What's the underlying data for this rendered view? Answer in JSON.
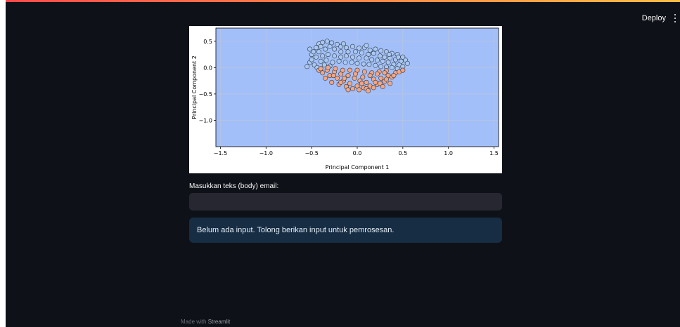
{
  "header": {
    "deploy_label": "Deploy",
    "menu_icon": "more-vertical-icon"
  },
  "chart_data": {
    "type": "scatter",
    "title": "",
    "xlabel": "Principal Component 1",
    "ylabel": "Principal Component 2",
    "xlim": [
      -1.55,
      1.55
    ],
    "ylim": [
      -1.5,
      0.75
    ],
    "xticks": [
      -1.5,
      -1.0,
      -0.5,
      0.0,
      0.5,
      1.0,
      1.5
    ],
    "xtick_labels": [
      "−1.5",
      "−1.0",
      "−0.5",
      "0.0",
      "0.5",
      "1.0",
      "1.5"
    ],
    "yticks": [
      0.5,
      0.0,
      -0.5,
      -1.0
    ],
    "ytick_labels": [
      "0.5",
      "0.0",
      "−0.5",
      "−1.0"
    ],
    "grid": true,
    "background_color": "#a3bff9",
    "series": [
      {
        "color": "#a9c8f1",
        "points": [
          [
            -0.45,
            0.38
          ],
          [
            -0.42,
            0.45
          ],
          [
            -0.38,
            0.48
          ],
          [
            -0.33,
            0.5
          ],
          [
            -0.28,
            0.47
          ],
          [
            -0.22,
            0.44
          ],
          [
            -0.18,
            0.4
          ],
          [
            -0.12,
            0.38
          ],
          [
            -0.05,
            0.4
          ],
          [
            0.02,
            0.37
          ],
          [
            0.08,
            0.38
          ],
          [
            0.14,
            0.33
          ],
          [
            0.2,
            0.35
          ],
          [
            0.26,
            0.32
          ],
          [
            0.32,
            0.3
          ],
          [
            0.38,
            0.27
          ],
          [
            0.44,
            0.25
          ],
          [
            0.5,
            0.2
          ],
          [
            0.53,
            0.14
          ],
          [
            0.55,
            0.08
          ],
          [
            -0.5,
            0.25
          ],
          [
            -0.48,
            0.3
          ],
          [
            -0.42,
            0.3
          ],
          [
            -0.35,
            0.35
          ],
          [
            -0.3,
            0.4
          ],
          [
            -0.25,
            0.35
          ],
          [
            -0.18,
            0.3
          ],
          [
            -0.1,
            0.3
          ],
          [
            -0.02,
            0.3
          ],
          [
            0.05,
            0.28
          ],
          [
            0.12,
            0.25
          ],
          [
            0.18,
            0.27
          ],
          [
            0.25,
            0.22
          ],
          [
            0.3,
            0.2
          ],
          [
            0.36,
            0.18
          ],
          [
            0.42,
            0.15
          ],
          [
            0.48,
            0.12
          ],
          [
            -0.52,
            0.1
          ],
          [
            -0.5,
            0.15
          ],
          [
            -0.45,
            0.2
          ],
          [
            -0.38,
            0.22
          ],
          [
            -0.32,
            0.25
          ],
          [
            -0.25,
            0.22
          ],
          [
            -0.18,
            0.2
          ],
          [
            -0.12,
            0.22
          ],
          [
            -0.05,
            0.2
          ],
          [
            0.02,
            0.18
          ],
          [
            0.1,
            0.18
          ],
          [
            0.16,
            0.15
          ],
          [
            0.22,
            0.14
          ],
          [
            0.28,
            0.12
          ],
          [
            0.34,
            0.1
          ],
          [
            0.4,
            0.06
          ],
          [
            0.46,
            0.05
          ],
          [
            0.5,
            0.02
          ],
          [
            -0.55,
            0.02
          ],
          [
            -0.47,
            0.05
          ],
          [
            -0.4,
            0.12
          ],
          [
            -0.34,
            0.14
          ],
          [
            -0.27,
            0.1
          ],
          [
            -0.2,
            0.12
          ],
          [
            -0.13,
            0.1
          ],
          [
            -0.06,
            0.1
          ],
          [
            0.0,
            0.08
          ],
          [
            0.07,
            0.07
          ],
          [
            0.13,
            0.06
          ],
          [
            0.2,
            0.04
          ],
          [
            0.26,
            0.02
          ],
          [
            0.32,
            0.01
          ],
          [
            -0.44,
            0.0
          ],
          [
            -0.36,
            0.05
          ],
          [
            -0.3,
            0.03
          ],
          [
            0.38,
            0.0
          ],
          [
            0.44,
            -0.02
          ],
          [
            -0.52,
            0.35
          ],
          [
            -0.4,
            0.4
          ],
          [
            -0.15,
            0.45
          ],
          [
            0.1,
            0.42
          ],
          [
            0.35,
            0.25
          ],
          [
            0.45,
            0.2
          ]
        ]
      },
      {
        "color": "#f4a582",
        "points": [
          [
            -0.42,
            -0.05
          ],
          [
            -0.38,
            -0.1
          ],
          [
            -0.33,
            -0.05
          ],
          [
            -0.3,
            -0.15
          ],
          [
            -0.25,
            -0.08
          ],
          [
            -0.22,
            -0.2
          ],
          [
            -0.18,
            -0.12
          ],
          [
            -0.15,
            -0.25
          ],
          [
            -0.1,
            -0.15
          ],
          [
            -0.08,
            -0.3
          ],
          [
            -0.03,
            -0.2
          ],
          [
            0.0,
            -0.35
          ],
          [
            0.03,
            -0.25
          ],
          [
            0.07,
            -0.38
          ],
          [
            0.1,
            -0.28
          ],
          [
            0.14,
            -0.35
          ],
          [
            0.18,
            -0.22
          ],
          [
            0.22,
            -0.32
          ],
          [
            0.26,
            -0.2
          ],
          [
            0.3,
            -0.26
          ],
          [
            0.34,
            -0.15
          ],
          [
            0.38,
            -0.18
          ],
          [
            0.42,
            -0.1
          ],
          [
            0.46,
            -0.08
          ],
          [
            0.5,
            -0.05
          ],
          [
            -0.35,
            -0.2
          ],
          [
            -0.28,
            -0.28
          ],
          [
            -0.2,
            -0.32
          ],
          [
            -0.12,
            -0.36
          ],
          [
            -0.05,
            -0.4
          ],
          [
            0.02,
            -0.42
          ],
          [
            0.1,
            -0.4
          ],
          [
            0.18,
            -0.38
          ],
          [
            0.25,
            -0.3
          ],
          [
            0.32,
            -0.22
          ],
          [
            0.4,
            -0.15
          ],
          [
            -0.4,
            -0.02
          ],
          [
            -0.32,
            0.0
          ],
          [
            -0.24,
            -0.02
          ],
          [
            -0.16,
            -0.05
          ],
          [
            -0.08,
            -0.05
          ],
          [
            0.0,
            -0.05
          ],
          [
            0.08,
            -0.08
          ],
          [
            0.16,
            -0.1
          ],
          [
            0.24,
            -0.08
          ],
          [
            0.32,
            -0.06
          ],
          [
            -0.26,
            -0.15
          ],
          [
            -0.14,
            -0.2
          ],
          [
            -0.02,
            -0.12
          ],
          [
            0.06,
            -0.18
          ],
          [
            0.14,
            -0.15
          ],
          [
            0.22,
            -0.12
          ],
          [
            0.3,
            -0.1
          ],
          [
            -0.18,
            -0.28
          ],
          [
            0.05,
            -0.3
          ],
          [
            0.2,
            -0.28
          ],
          [
            -0.1,
            -0.42
          ],
          [
            0.12,
            -0.44
          ],
          [
            0.28,
            -0.36
          ],
          [
            0.36,
            -0.3
          ]
        ]
      }
    ]
  },
  "form": {
    "email_label": "Masukkan teks (body) email:",
    "email_value": "",
    "email_placeholder": ""
  },
  "info": {
    "message": "Belum ada input. Tolong berikan input untuk pemrosesan."
  },
  "footer": {
    "prefix": "Made with",
    "brand": "Streamlit"
  }
}
